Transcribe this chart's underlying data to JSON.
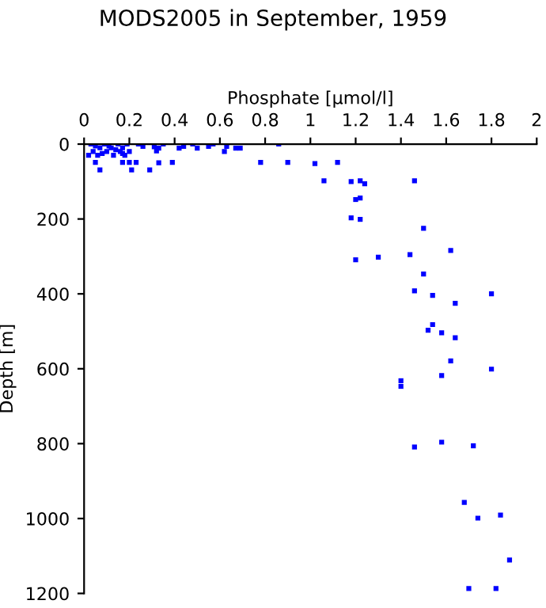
{
  "chart_data": {
    "type": "scatter",
    "title": "MODS2005 in September, 1959",
    "xlabel": "Phosphate [μmol/l]",
    "ylabel": "Depth [m]",
    "series": [
      {
        "color": "#0000ff",
        "x": [
          0.03,
          0.05,
          0.07,
          0.09,
          0.1,
          0.12,
          0.13,
          0.15,
          0.16,
          0.17,
          0.18,
          0.2,
          0.19,
          0.04,
          0.06,
          0.08,
          0.11,
          0.14,
          0.02,
          0.17,
          0.24,
          0.26,
          0.31,
          0.33,
          0.35,
          0.32,
          0.33,
          0.39,
          0.42,
          0.44,
          0.48,
          0.5,
          0.55,
          0.57,
          0.63,
          0.62,
          0.67,
          0.69,
          0.23,
          0.2,
          0.21,
          0.29,
          0.07,
          0.05,
          0.17,
          0.86,
          0.78,
          0.9,
          1.02,
          1.12,
          1.06,
          1.18,
          1.22,
          1.24,
          1.46,
          1.2,
          1.22,
          1.18,
          1.22,
          1.5,
          1.62,
          1.44,
          1.3,
          1.2,
          1.5,
          1.46,
          1.54,
          1.8,
          1.64,
          1.54,
          1.52,
          1.58,
          1.64,
          1.62,
          1.8,
          1.58,
          1.4,
          1.4,
          1.46,
          1.58,
          1.72,
          1.68,
          1.74,
          1.84,
          1.88,
          1.7,
          1.82
        ],
        "values": [
          0,
          5,
          10,
          0,
          20,
          10,
          30,
          0,
          20,
          10,
          30,
          20,
          0,
          20,
          30,
          25,
          5,
          15,
          30,
          25,
          0,
          6,
          7,
          11,
          0,
          18,
          50,
          49,
          11,
          6,
          0,
          11,
          6,
          0,
          6,
          20,
          11,
          11,
          49,
          49,
          69,
          69,
          69,
          49,
          49,
          0,
          49,
          49,
          52,
          49,
          98,
          100,
          98,
          106,
          98,
          148,
          144,
          197,
          201,
          225,
          284,
          295,
          302,
          309,
          347,
          392,
          404,
          400,
          425,
          482,
          497,
          504,
          517,
          579,
          601,
          618,
          632,
          647,
          809,
          796,
          806,
          957,
          999,
          991,
          1111,
          1187,
          1187
        ]
      }
    ],
    "xlim": [
      0,
      2
    ],
    "xticks": [
      0,
      0.2,
      0.4,
      0.6,
      0.8,
      1,
      1.2,
      1.4,
      1.6,
      1.8,
      2
    ],
    "ylim": [
      1200,
      0
    ],
    "yticks": [
      0,
      200,
      400,
      600,
      800,
      1000,
      1200
    ],
    "marker": "square",
    "grid": false,
    "legend": false
  }
}
